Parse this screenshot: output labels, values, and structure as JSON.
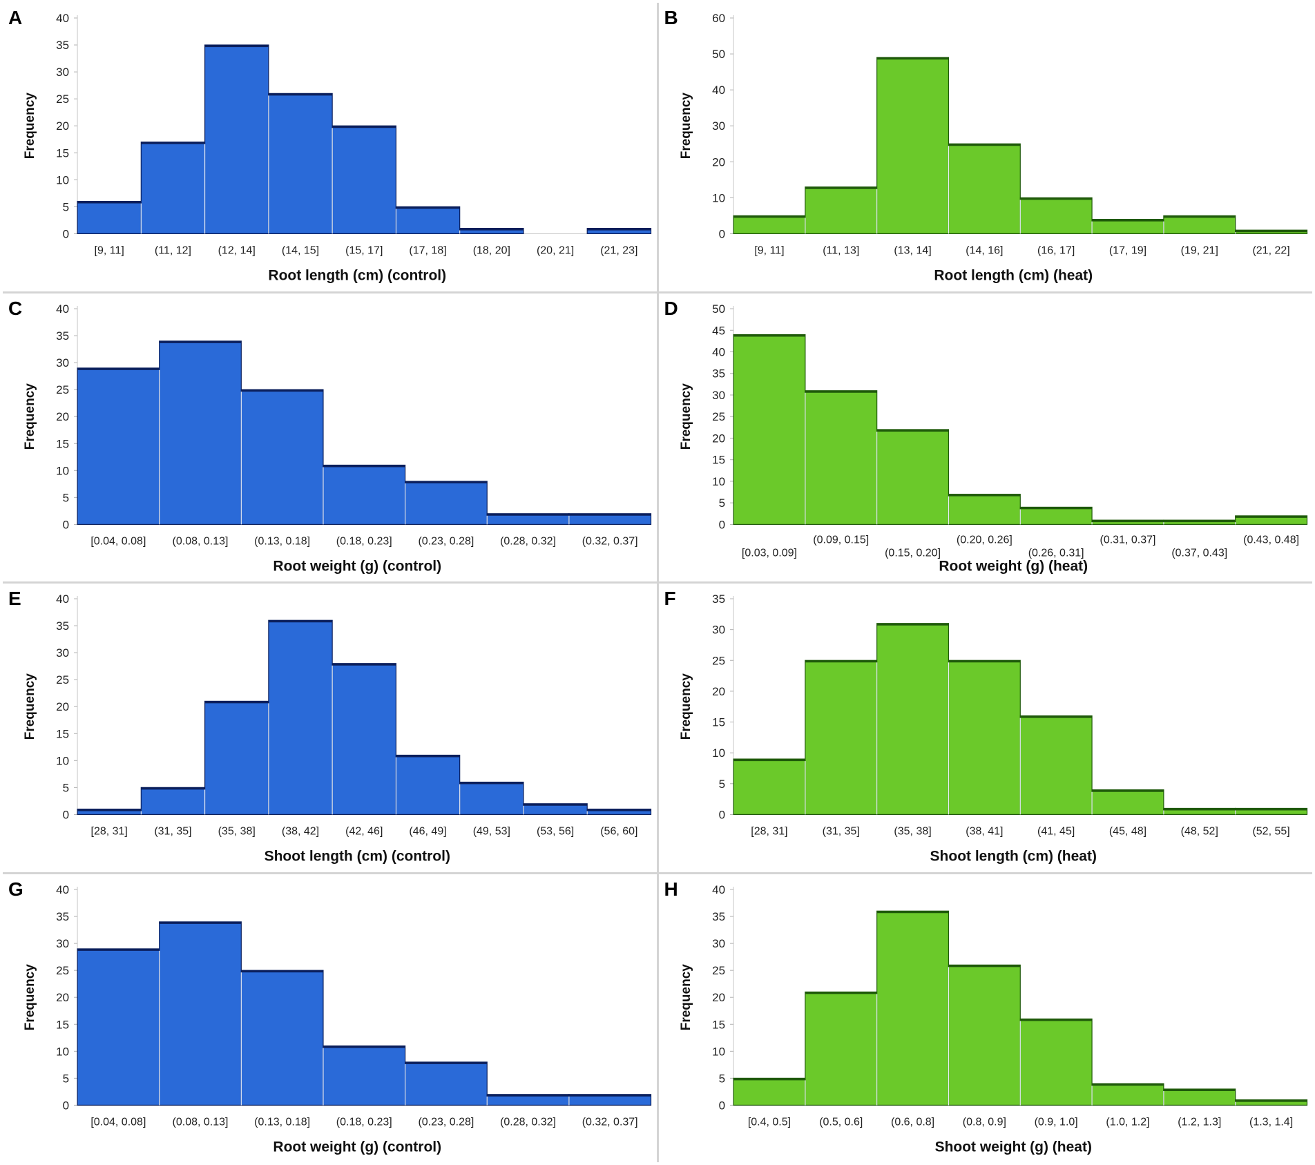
{
  "figure": {
    "panels": [
      {
        "label": "A",
        "color": "#2a6ad8",
        "edge": "#0b1f5c"
      },
      {
        "label": "B",
        "color": "#6bc92a",
        "edge": "#1f5a0a"
      },
      {
        "label": "C",
        "color": "#2a6ad8",
        "edge": "#0b1f5c"
      },
      {
        "label": "D",
        "color": "#6bc92a",
        "edge": "#1f5a0a"
      },
      {
        "label": "E",
        "color": "#2a6ad8",
        "edge": "#0b1f5c"
      },
      {
        "label": "F",
        "color": "#6bc92a",
        "edge": "#1f5a0a"
      },
      {
        "label": "G",
        "color": "#2a6ad8",
        "edge": "#0b1f5c"
      },
      {
        "label": "H",
        "color": "#6bc92a",
        "edge": "#1f5a0a"
      }
    ]
  },
  "chart_data": [
    {
      "type": "bar",
      "panel": "A",
      "title": "",
      "xlabel": "Root length (cm) (control)",
      "ylabel": "Frequency",
      "ylim": [
        0,
        40
      ],
      "yticks": [
        0,
        5,
        10,
        15,
        20,
        25,
        30,
        35,
        40
      ],
      "label_layout": "single",
      "categories": [
        "[9, 11]",
        "(11, 12]",
        "(12, 14]",
        "(14, 15]",
        "(15, 17]",
        "(17, 18]",
        "(18, 20]",
        "(20, 21]",
        "(21, 23]"
      ],
      "values": [
        6,
        17,
        35,
        26,
        20,
        5,
        1,
        0,
        1
      ]
    },
    {
      "type": "bar",
      "panel": "B",
      "title": "",
      "xlabel": "Root length (cm) (heat)",
      "ylabel": "Frequency",
      "ylim": [
        0,
        60
      ],
      "yticks": [
        0,
        10,
        20,
        30,
        40,
        50,
        60
      ],
      "label_layout": "single",
      "categories": [
        "[9, 11]",
        "(11, 13]",
        "(13, 14]",
        "(14, 16]",
        "(16, 17]",
        "(17, 19]",
        "(19, 21]",
        "(21, 22]"
      ],
      "values": [
        5,
        13,
        49,
        25,
        10,
        4,
        5,
        1
      ]
    },
    {
      "type": "bar",
      "panel": "C",
      "title": "",
      "xlabel": "Root weight (g) (control)",
      "ylabel": "Frequency",
      "ylim": [
        0,
        40
      ],
      "yticks": [
        0,
        5,
        10,
        15,
        20,
        25,
        30,
        35,
        40
      ],
      "label_layout": "single",
      "categories": [
        "[0.04, 0.08]",
        "(0.08, 0.13]",
        "(0.13, 0.18]",
        "(0.18, 0.23]",
        "(0.23, 0.28]",
        "(0.28, 0.32]",
        "(0.32, 0.37]"
      ],
      "values": [
        29,
        34,
        25,
        11,
        8,
        2,
        2
      ]
    },
    {
      "type": "bar",
      "panel": "D",
      "title": "",
      "xlabel": "Root weight (g) (heat)",
      "ylabel": "Frequency",
      "ylim": [
        0,
        50
      ],
      "yticks": [
        0,
        5,
        10,
        15,
        20,
        25,
        30,
        35,
        40,
        45,
        50
      ],
      "label_layout": "staggered",
      "categories": [
        "[0.03, 0.09]",
        "(0.09, 0.15]",
        "(0.15, 0.20]",
        "(0.20, 0.26]",
        "(0.26, 0.31]",
        "(0.31, 0.37]",
        "(0.37, 0.43]",
        "(0.43, 0.48]"
      ],
      "values": [
        44,
        31,
        22,
        7,
        4,
        1,
        1,
        2
      ]
    },
    {
      "type": "bar",
      "panel": "E",
      "title": "",
      "xlabel": "Shoot length (cm) (control)",
      "ylabel": "Frequency",
      "ylim": [
        0,
        40
      ],
      "yticks": [
        0,
        5,
        10,
        15,
        20,
        25,
        30,
        35,
        40
      ],
      "label_layout": "single",
      "categories": [
        "[28, 31]",
        "(31, 35]",
        "(35, 38]",
        "(38, 42]",
        "(42, 46]",
        "(46, 49]",
        "(49, 53]",
        "(53, 56]",
        "(56, 60]"
      ],
      "values": [
        1,
        5,
        21,
        36,
        28,
        11,
        6,
        2,
        1
      ]
    },
    {
      "type": "bar",
      "panel": "F",
      "title": "",
      "xlabel": "Shoot length (cm) (heat)",
      "ylabel": "Frequency",
      "ylim": [
        0,
        35
      ],
      "yticks": [
        0,
        5,
        10,
        15,
        20,
        25,
        30,
        35
      ],
      "label_layout": "single",
      "categories": [
        "[28, 31]",
        "(31, 35]",
        "(35, 38]",
        "(38, 41]",
        "(41, 45]",
        "(45, 48]",
        "(48, 52]",
        "(52, 55]"
      ],
      "values": [
        9,
        25,
        31,
        25,
        16,
        4,
        1,
        1
      ]
    },
    {
      "type": "bar",
      "panel": "G",
      "title": "",
      "xlabel": "Root weight (g) (control)",
      "ylabel": "Frequency",
      "ylim": [
        0,
        40
      ],
      "yticks": [
        0,
        5,
        10,
        15,
        20,
        25,
        30,
        35,
        40
      ],
      "label_layout": "single",
      "categories": [
        "[0.04, 0.08]",
        "(0.08, 0.13]",
        "(0.13, 0.18]",
        "(0.18, 0.23]",
        "(0.23, 0.28]",
        "(0.28, 0.32]",
        "(0.32, 0.37]"
      ],
      "values": [
        29,
        34,
        25,
        11,
        8,
        2,
        2
      ]
    },
    {
      "type": "bar",
      "panel": "H",
      "title": "",
      "xlabel": "Shoot weight (g) (heat)",
      "ylabel": "Frequency",
      "ylim": [
        0,
        40
      ],
      "yticks": [
        0,
        5,
        10,
        15,
        20,
        25,
        30,
        35,
        40
      ],
      "label_layout": "single",
      "categories": [
        "[0.4, 0.5]",
        "(0.5, 0.6]",
        "(0.6, 0.8]",
        "(0.8, 0.9]",
        "(0.9, 1.0]",
        "(1.0, 1.2]",
        "(1.2, 1.3]",
        "(1.3, 1.4]"
      ],
      "values": [
        5,
        21,
        36,
        26,
        16,
        4,
        3,
        1
      ]
    }
  ]
}
